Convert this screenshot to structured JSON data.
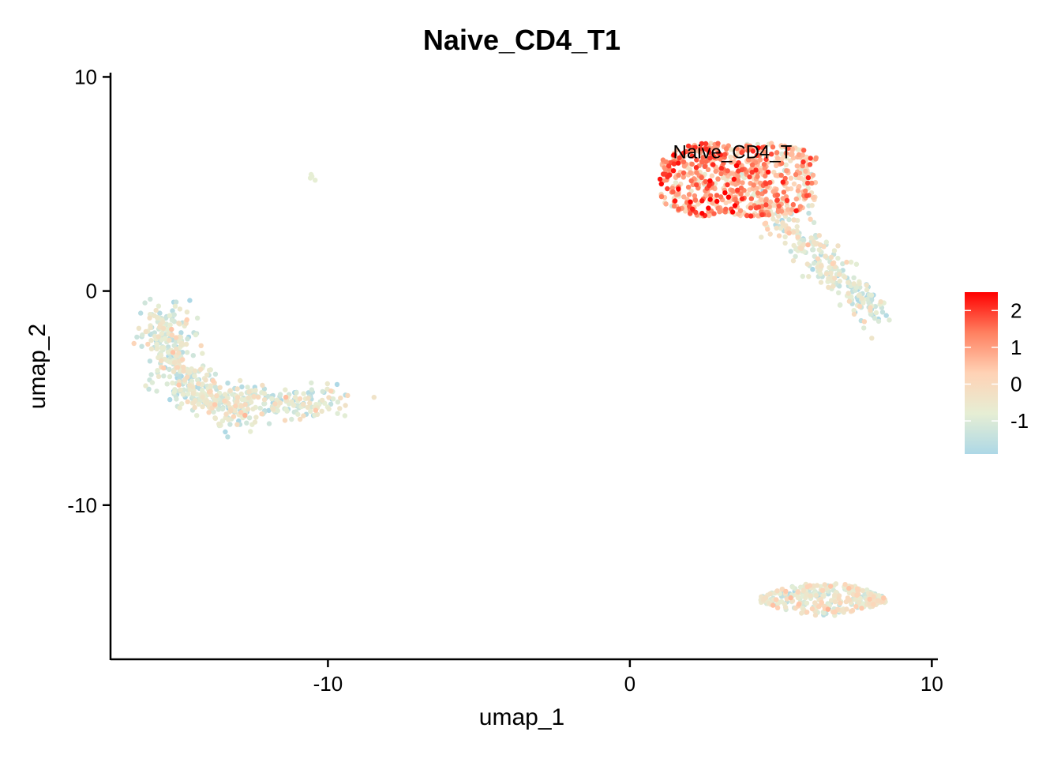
{
  "chart_data": {
    "type": "scatter",
    "title": "Naive_CD4_T1",
    "xlabel": "umap_1",
    "ylabel": "umap_2",
    "xlim": [
      -17.2,
      10.2
    ],
    "ylim": [
      -17.2,
      10.2
    ],
    "x_ticks": [
      -10,
      0,
      10
    ],
    "y_ticks": [
      10,
      0,
      -10
    ],
    "grid": false,
    "color_scale": {
      "min": -1.9,
      "max": 2.5,
      "ticks": [
        2,
        1,
        0,
        -1
      ],
      "colors": [
        "#ADD8E6",
        "#E6EED4",
        "#FFD2B5",
        "#FF8060",
        "#FF0000"
      ],
      "legend_position": "right"
    },
    "annotations": [
      {
        "text": "Naive_CD4_T",
        "x": 3.4,
        "y": 6.5
      }
    ],
    "clusters": [
      {
        "cluster": "naive-cd4-t",
        "center": [
          3.6,
          5.2
        ],
        "spread": [
          2.6,
          1.7
        ],
        "n": 700,
        "mean_expr": 0.8
      },
      {
        "cluster": "naive-cd4-t-tail",
        "center": [
          6.8,
          0.5
        ],
        "spread": [
          1.1,
          1.2
        ],
        "n": 260,
        "mean_expr": -0.6
      },
      {
        "cluster": "left-arc",
        "center": [
          -12.8,
          -3.6
        ],
        "spread": [
          2.2,
          1.6
        ],
        "n": 620,
        "mean_expr": -0.9
      },
      {
        "cluster": "bottom-right",
        "center": [
          6.4,
          -14.4
        ],
        "spread": [
          1.8,
          0.5
        ],
        "n": 330,
        "mean_expr": -0.7
      },
      {
        "cluster": "isolated",
        "center": [
          -10.5,
          5.3
        ],
        "spread": [
          0.1,
          0.1
        ],
        "n": 4,
        "mean_expr": -0.8
      }
    ]
  }
}
